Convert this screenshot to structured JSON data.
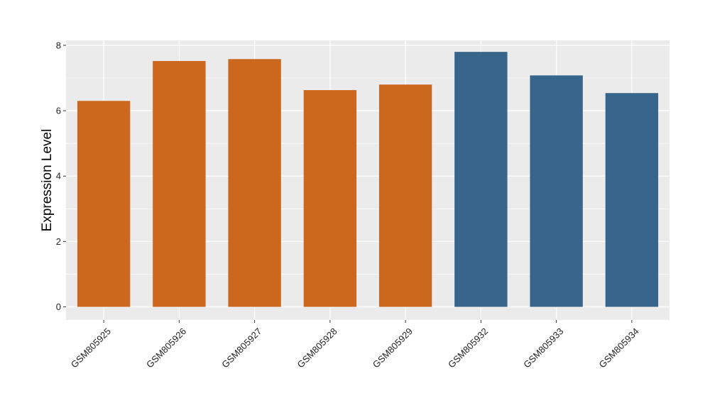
{
  "chart_data": {
    "type": "bar",
    "title": "",
    "xlabel": "",
    "ylabel": "Expression Level",
    "categories": [
      "GSM805925",
      "GSM805926",
      "GSM805927",
      "GSM805928",
      "GSM805929",
      "GSM805932",
      "GSM805933",
      "GSM805934"
    ],
    "values": [
      6.3,
      7.52,
      7.58,
      6.63,
      6.8,
      7.8,
      7.08,
      6.54
    ],
    "bar_colors": [
      "#CC671E",
      "#CC671E",
      "#CC671E",
      "#CC671E",
      "#CC671E",
      "#37658C",
      "#37658C",
      "#37658C"
    ],
    "ylim": [
      -0.4,
      8.15
    ],
    "yticks": [
      0,
      2,
      4,
      6,
      8
    ],
    "ytick_labels": [
      "0",
      "2",
      "4",
      "6",
      "8"
    ],
    "grid": true,
    "panel_background": "#EBEBEB",
    "grid_color": "#FFFFFF",
    "legend": "none"
  }
}
